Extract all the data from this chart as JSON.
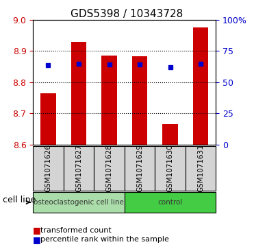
{
  "title": "GDS5398 / 10343728",
  "samples": [
    "GSM1071626",
    "GSM1071627",
    "GSM1071628",
    "GSM1071629",
    "GSM1071630",
    "GSM1071631"
  ],
  "bar_bottoms": [
    8.6,
    8.6,
    8.6,
    8.6,
    8.6,
    8.6
  ],
  "bar_tops": [
    8.765,
    8.93,
    8.885,
    8.883,
    8.665,
    8.975
  ],
  "blue_y": [
    8.855,
    8.858,
    8.856,
    8.856,
    8.848,
    8.86
  ],
  "ylim": [
    8.6,
    9.0
  ],
  "yticks_left": [
    8.6,
    8.7,
    8.8,
    8.9,
    9.0
  ],
  "yticks_right_vals": [
    0,
    25,
    50,
    75,
    100
  ],
  "yticks_right_labels": [
    "0",
    "25",
    "50",
    "75",
    "100%"
  ],
  "bar_color": "#cc0000",
  "blue_color": "#0000cc",
  "cell_line_groups": [
    {
      "label": "osteoclastogenic cell line",
      "indices": [
        0,
        1,
        2
      ],
      "color": "#aaddaa"
    },
    {
      "label": "control",
      "indices": [
        3,
        4,
        5
      ],
      "color": "#44cc44"
    }
  ],
  "legend_red_label": "transformed count",
  "legend_blue_label": "percentile rank within the sample",
  "cell_line_label": "cell line",
  "tick_color_left": "#cc0000",
  "tick_color_right": "#0000cc",
  "bar_width": 0.5,
  "sample_box_color": "#d4d4d4"
}
